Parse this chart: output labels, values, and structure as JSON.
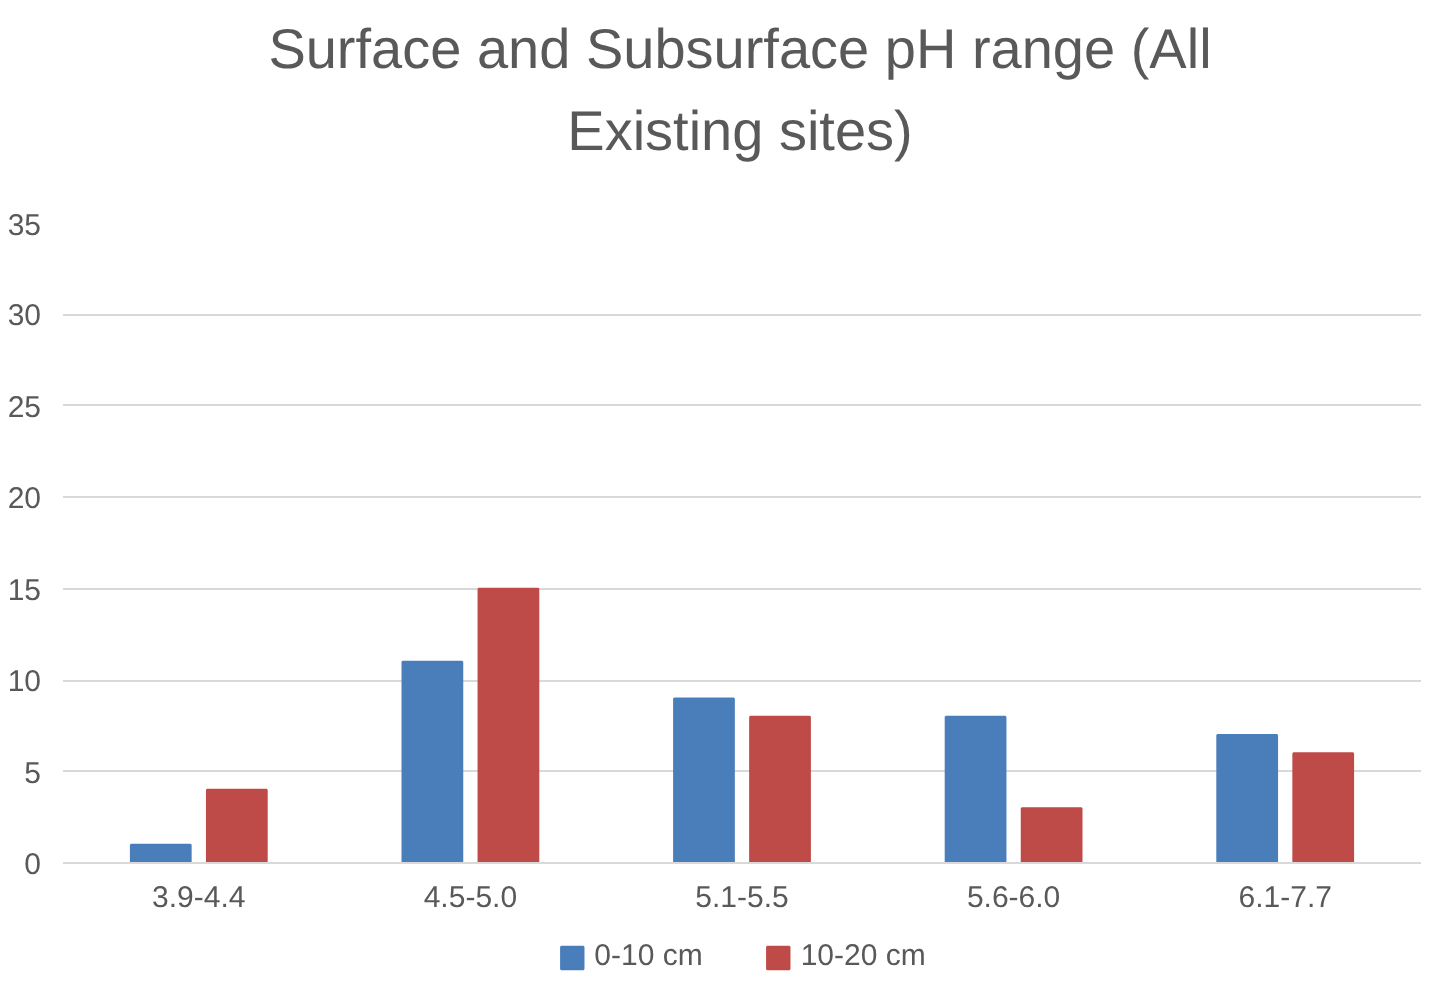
{
  "chart_data": {
    "type": "bar",
    "title": "Surface and Subsurface pH range (All Existing sites)",
    "categories": [
      "3.9-4.4",
      "4.5-5.0",
      "5.1-5.5",
      "5.6-6.0",
      "6.1-7.7"
    ],
    "series": [
      {
        "name": "0-10 cm",
        "color": "#4a7ebb",
        "values": [
          1,
          11,
          9,
          8,
          7
        ]
      },
      {
        "name": "10-20 cm",
        "color": "#be4b48",
        "values": [
          4,
          15,
          8,
          3,
          6
        ]
      }
    ],
    "ylim": [
      0,
      35
    ],
    "yticks": [
      0,
      5,
      10,
      15,
      20,
      25,
      30,
      35
    ],
    "grid": "y",
    "legend": "bottom"
  }
}
